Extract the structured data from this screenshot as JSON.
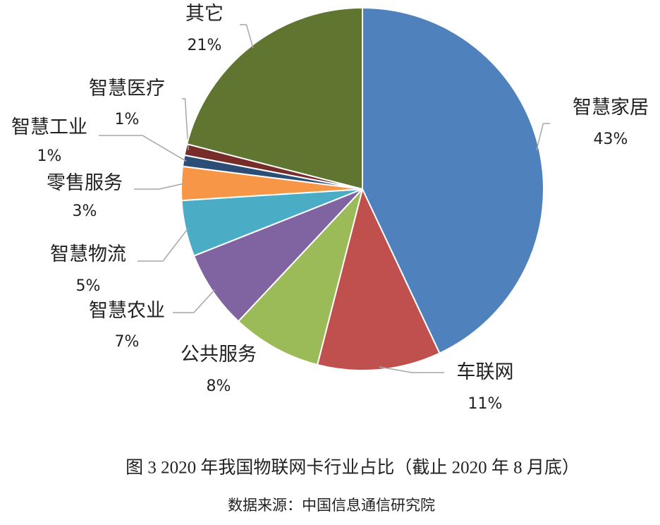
{
  "chart_data": {
    "type": "pie",
    "title": "图 3 2020 年我国物联网卡行业占比（截止 2020 年 8 月底）",
    "source": "数据来源：中国信息通信研究院",
    "categories": [
      "智慧家居",
      "车联网",
      "公共服务",
      "智慧农业",
      "智慧物流",
      "零售服务",
      "智慧工业",
      "智慧医疗",
      "其它"
    ],
    "values": [
      43,
      11,
      8,
      7,
      5,
      3,
      1,
      1,
      21
    ],
    "value_labels": [
      "43%",
      "11%",
      "8%",
      "7%",
      "5%",
      "3%",
      "1%",
      "1%",
      "21%"
    ],
    "colors": [
      "#4f81bd",
      "#c0504d",
      "#9bbb59",
      "#8064a2",
      "#4bacc6",
      "#f79646",
      "#2c4d75",
      "#772c2a",
      "#5f7530"
    ]
  }
}
